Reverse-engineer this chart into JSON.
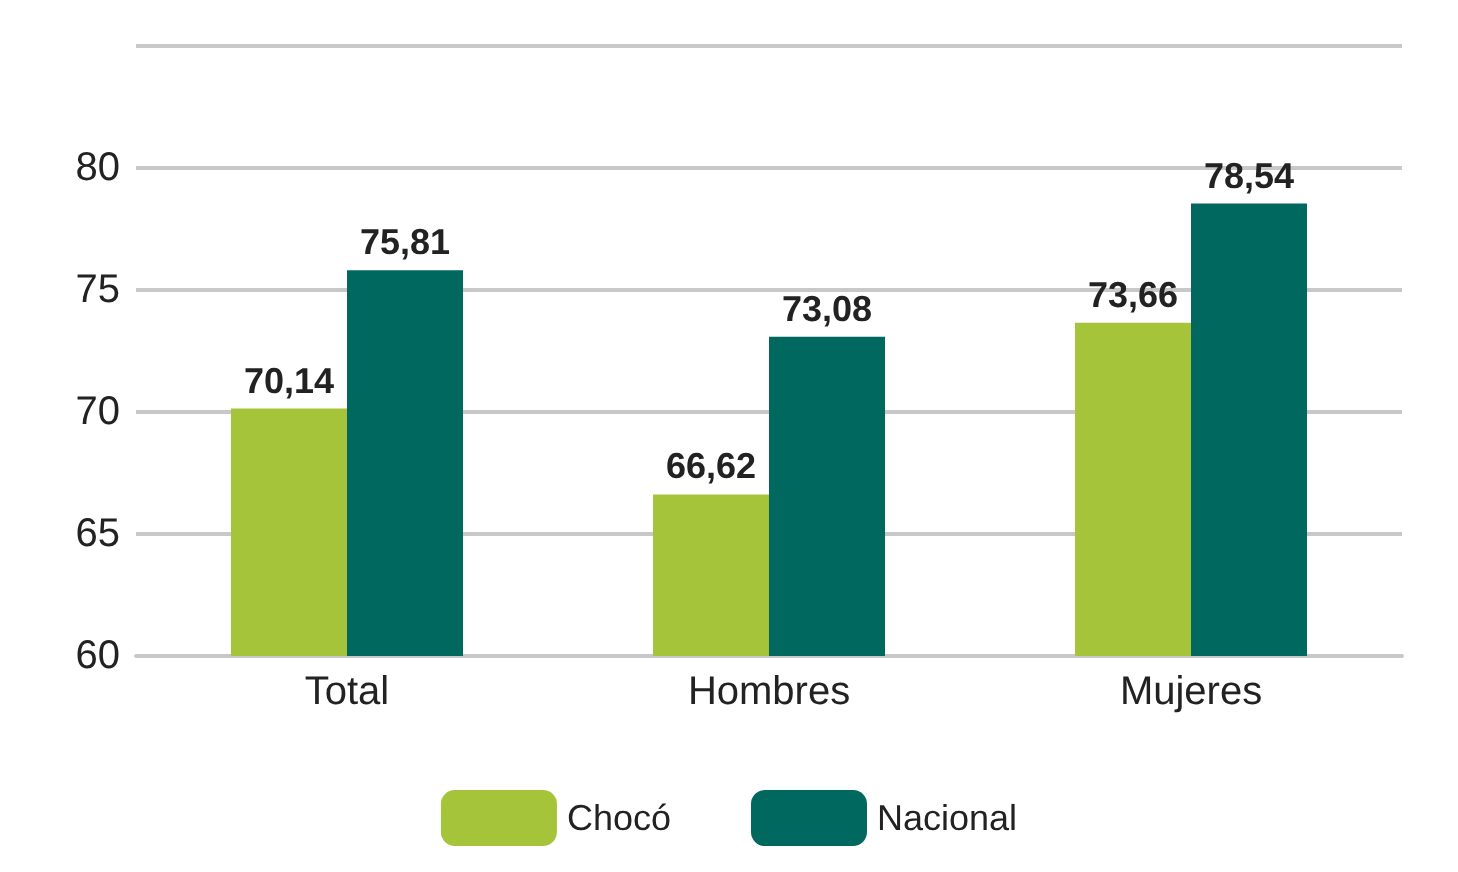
{
  "chart_data": {
    "type": "bar",
    "categories": [
      "Total",
      "Hombres",
      "Mujeres"
    ],
    "series": [
      {
        "name": "Chocó",
        "color": "#a5c43a",
        "values": [
          70.14,
          66.62,
          73.66
        ],
        "value_labels": [
          "70,14",
          "66,62",
          "73,66"
        ]
      },
      {
        "name": "Nacional",
        "color": "#00685e",
        "values": [
          75.81,
          73.08,
          78.54
        ],
        "value_labels": [
          "75,81",
          "73,08",
          "78,54"
        ]
      }
    ],
    "ylim": [
      60,
      85
    ],
    "yticks": [
      60,
      65,
      70,
      75,
      80,
      {
        "value": 85,
        "label": null
      }
    ],
    "grid": "y",
    "legend": "bottom"
  }
}
